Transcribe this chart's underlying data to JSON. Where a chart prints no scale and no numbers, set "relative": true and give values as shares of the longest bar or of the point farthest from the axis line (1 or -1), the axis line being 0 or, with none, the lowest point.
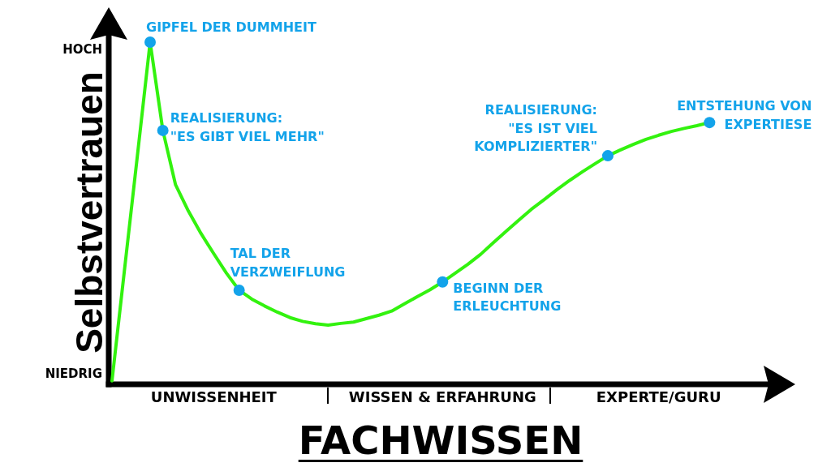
{
  "chart_data": {
    "type": "line",
    "xlabel": "FACHWISSEN",
    "ylabel": "Selbstvertrauen",
    "relative": true,
    "categories": [
      null,
      null,
      null,
      null,
      null,
      null,
      null,
      null,
      "UNWISSENHEIT",
      null,
      null,
      null,
      null,
      null,
      null,
      null,
      null,
      null,
      null,
      null,
      null,
      null,
      null,
      null,
      null,
      null,
      "WISSEN & ERFAHRUNG",
      null,
      null,
      null,
      null,
      null,
      null,
      null,
      null,
      null,
      null,
      null,
      null,
      null,
      null,
      null,
      null,
      "EXPERTE/GURU",
      null,
      null,
      null,
      null
    ],
    "series": [
      {
        "type": "line",
        "color": "#33f20f",
        "values": [
          0.01,
          0.34,
          0.669,
          1,
          0.742,
          0.583,
          0.507,
          0.441,
          0.382,
          0.325,
          0.275,
          0.249,
          0.229,
          0.211,
          0.195,
          0.184,
          0.177,
          0.173,
          0.178,
          0.182,
          0.192,
          0.202,
          0.214,
          0.235,
          0.256,
          0.276,
          0.299,
          0.325,
          0.351,
          0.38,
          0.414,
          0.447,
          0.48,
          0.512,
          0.54,
          0.569,
          0.596,
          0.621,
          0.645,
          0.668,
          0.685,
          0.701,
          0.716,
          0.728,
          0.739,
          0.748,
          0.756,
          0.765
        ]
      },
      {
        "type": "scatter",
        "color": "#13a3ea",
        "marker": "circle",
        "values": [
          null,
          null,
          null,
          1,
          0.742,
          null,
          null,
          null,
          null,
          null,
          0.275,
          null,
          null,
          null,
          null,
          null,
          null,
          null,
          null,
          null,
          null,
          null,
          null,
          null,
          null,
          null,
          0.299,
          null,
          null,
          null,
          null,
          null,
          null,
          null,
          null,
          null,
          null,
          null,
          null,
          0.668,
          null,
          null,
          null,
          null,
          null,
          null,
          null,
          0.765
        ]
      }
    ],
    "annotations": [
      "GIPFEL DER DUMMHEIT",
      "REALISIERUNG:\n\"ES GIBT VIEL MEHR\"",
      "TAL DER\nVERZWEIFLUNG",
      "BEGINN DER\nERLEUCHTUNG",
      "REALISIERUNG:\n\"ES IST VIEL\nKOMPLIZIERTER\"",
      "ENTSTEHUNG VON\nEXPERTIESE",
      "HOCH",
      "NIEDRIG"
    ]
  }
}
